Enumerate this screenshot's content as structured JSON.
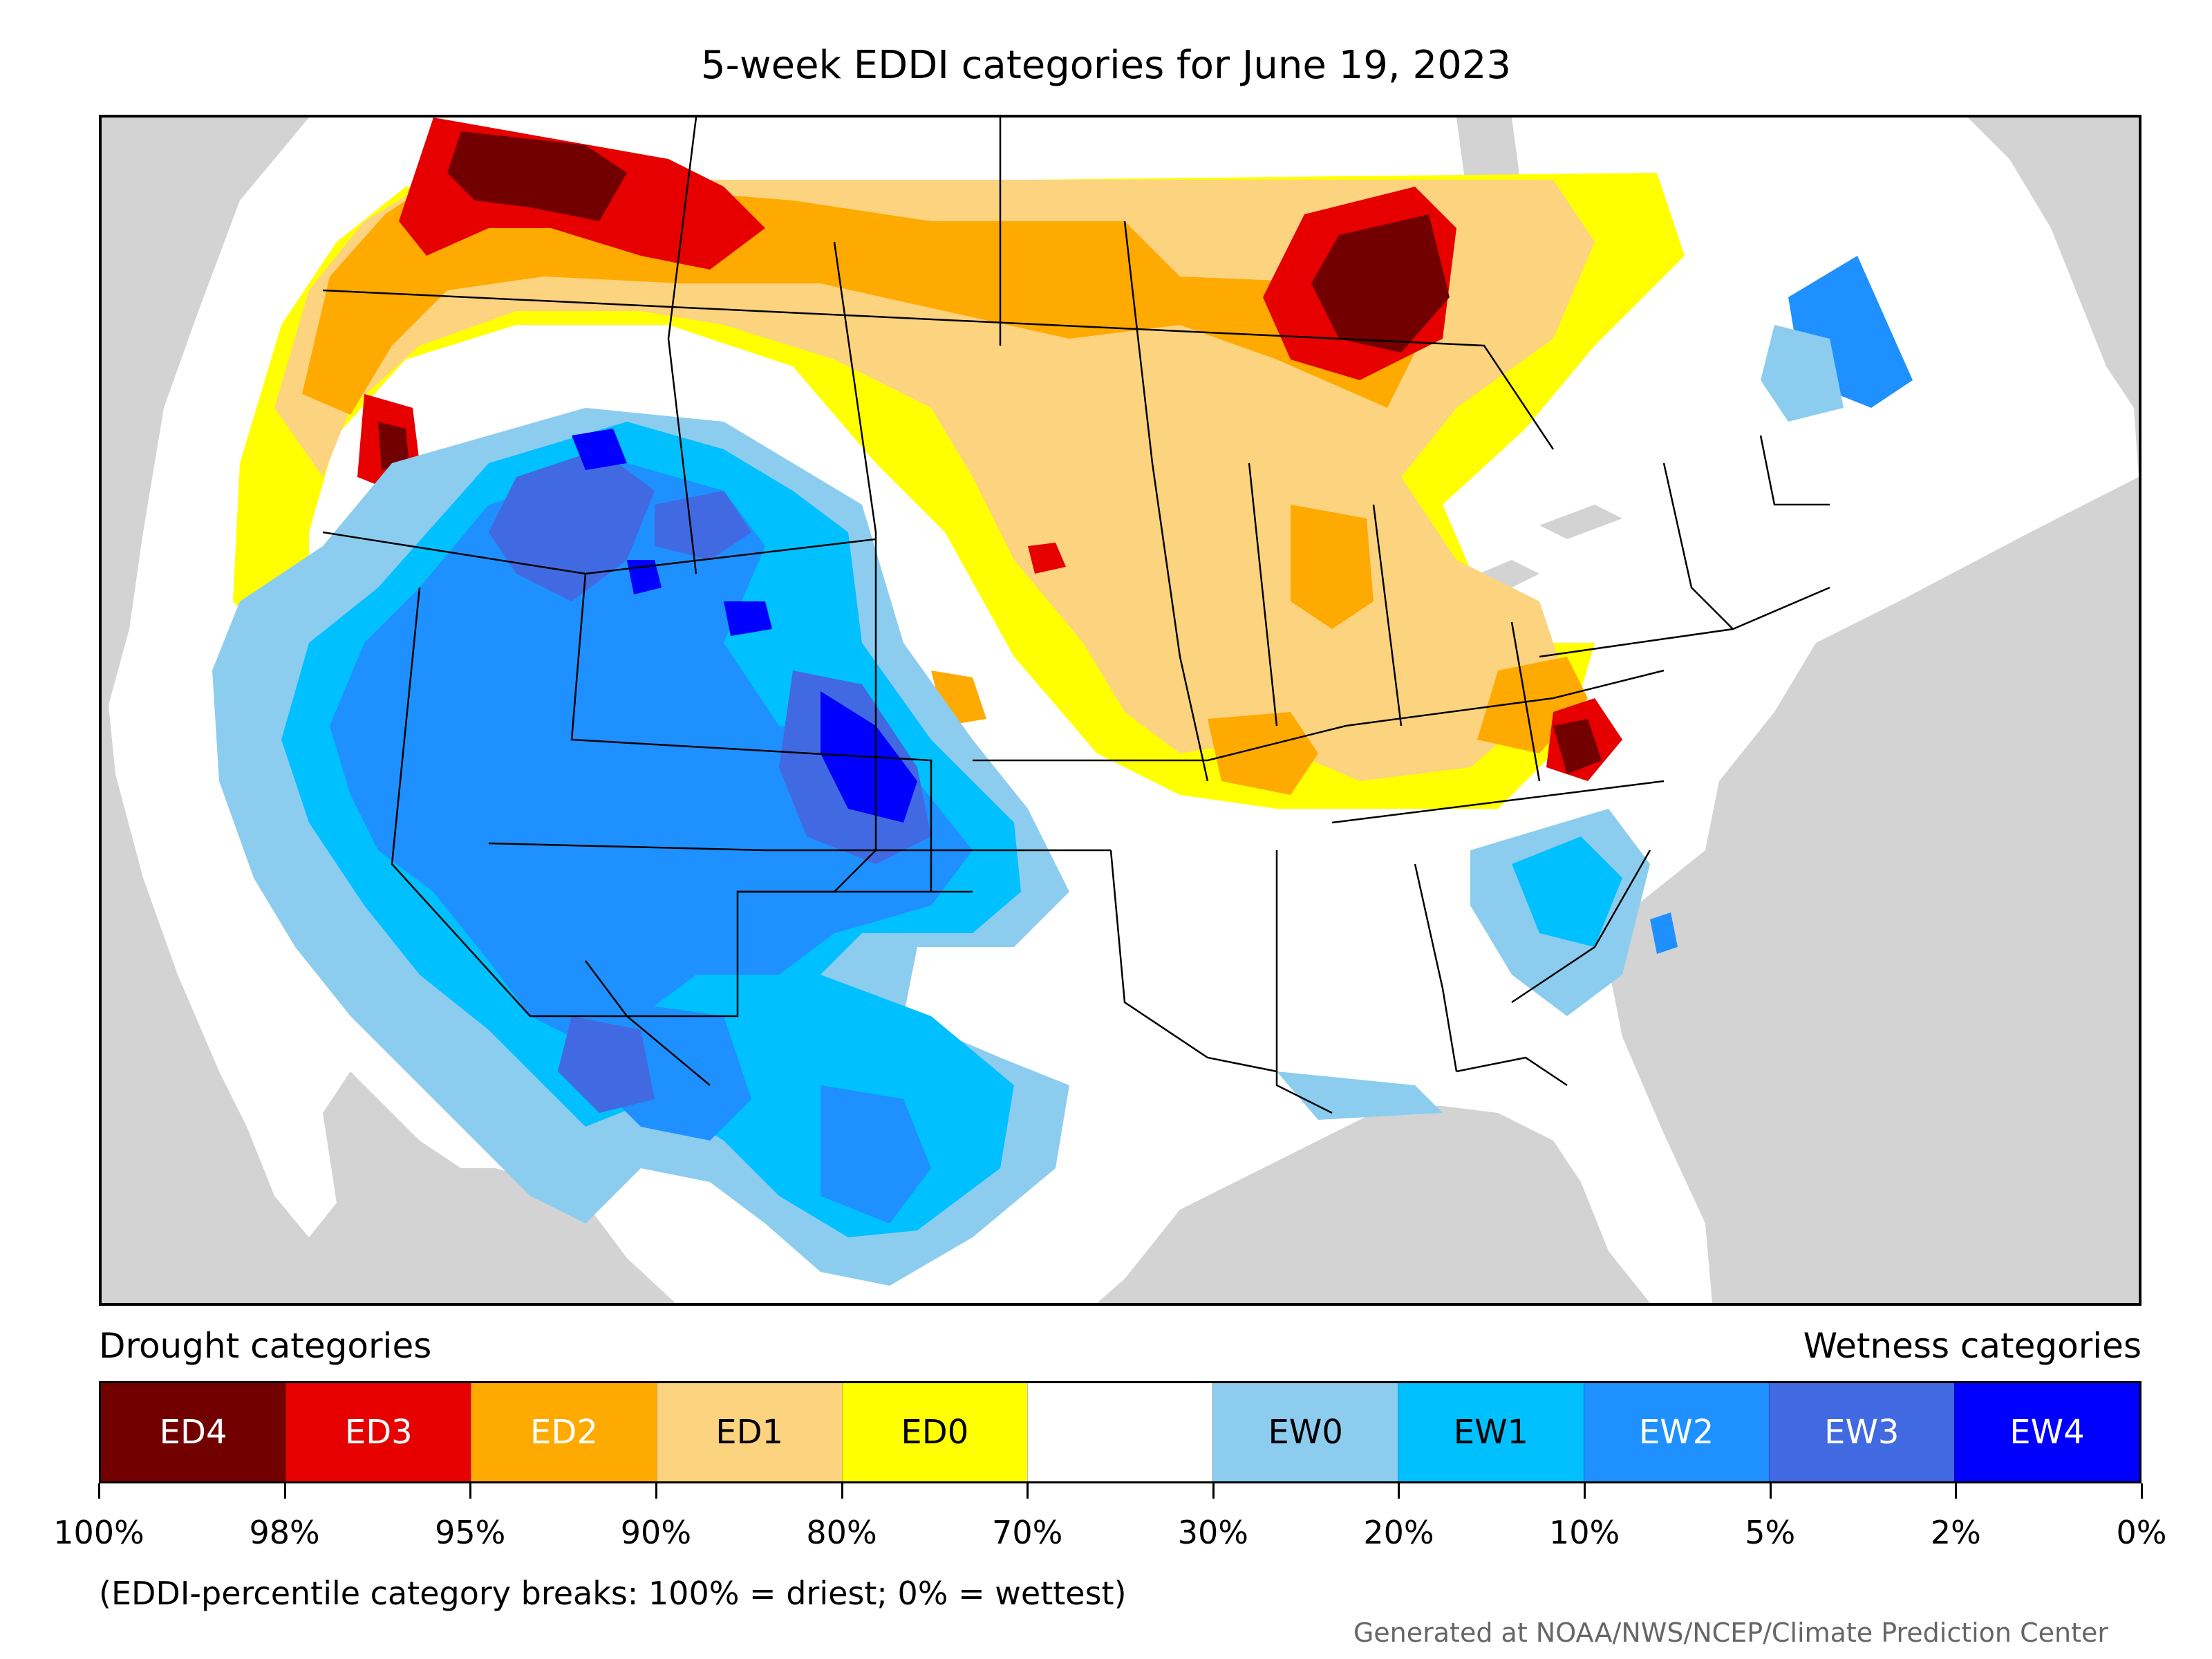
{
  "title": "5-week EDDI categories for June 19, 2023",
  "legend": {
    "drought_heading": "Drought categories",
    "wetness_heading": "Wetness categories",
    "categories": [
      {
        "label": "ED4",
        "color": "#730000",
        "text_color": "#ffffff"
      },
      {
        "label": "ED3",
        "color": "#e60000",
        "text_color": "#ffffff"
      },
      {
        "label": "ED2",
        "color": "#ffaa00",
        "text_color": "#ffffff"
      },
      {
        "label": "ED1",
        "color": "#fcd37f",
        "text_color": "#000000"
      },
      {
        "label": "ED0",
        "color": "#ffff00",
        "text_color": "#000000"
      },
      {
        "label": "",
        "color": "#ffffff",
        "text_color": "#000000"
      },
      {
        "label": "EW0",
        "color": "#8ccdef",
        "text_color": "#000000"
      },
      {
        "label": "EW1",
        "color": "#00c0ff",
        "text_color": "#000000"
      },
      {
        "label": "EW2",
        "color": "#1e90ff",
        "text_color": "#ffffff"
      },
      {
        "label": "EW3",
        "color": "#4169e1",
        "text_color": "#ffffff"
      },
      {
        "label": "EW4",
        "color": "#0000ff",
        "text_color": "#ffffff"
      }
    ],
    "ticks": [
      "100%",
      "98%",
      "95%",
      "90%",
      "80%",
      "70%",
      "30%",
      "20%",
      "10%",
      "5%",
      "2%",
      "0%"
    ]
  },
  "note": "(EDDI-percentile category breaks: 100% = driest; 0% = wettest)",
  "credit": "Generated at NOAA/NWS/NCEP/Climate Prediction Center",
  "map": {
    "background_color": "#d3d3d3",
    "land_color": "#ffffff",
    "water_color": "#d3d3d3"
  }
}
